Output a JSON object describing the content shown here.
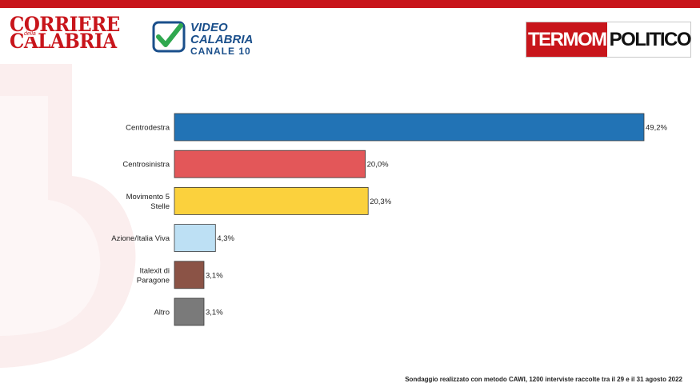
{
  "brand": {
    "cdc_line1": "CORRIERE",
    "cdc_della": "della",
    "cdc_line2": "CALABRIA",
    "vc_line1": "VIDEO",
    "vc_line2": "CALABRIA",
    "vc_line3": "CANALE 10",
    "tp_left": "TERMOMETRO",
    "tp_right": "POLITICO",
    "accent": "#c8151b"
  },
  "chart_data": {
    "type": "bar",
    "orientation": "horizontal",
    "categories": [
      [
        "Centrodestra"
      ],
      [
        "Centrosinistra"
      ],
      [
        "Movimento 5",
        "Stelle"
      ],
      [
        "Azione/Italia Viva"
      ],
      [
        "Italexit di",
        "Paragone"
      ],
      [
        "Altro"
      ]
    ],
    "values": [
      49.2,
      20.0,
      20.3,
      4.3,
      3.1,
      3.1
    ],
    "value_labels": [
      "49,2%",
      "20,0%",
      "20,3%",
      "4,3%",
      "3,1%",
      "3,1%"
    ],
    "colors": [
      "#2273b5",
      "#e35759",
      "#fbd13d",
      "#bde0f4",
      "#8b5346",
      "#7a7a7a"
    ],
    "xlim": [
      0,
      50
    ],
    "grid": false,
    "legend": "none"
  },
  "footer": {
    "note": "Sondaggio realizzato con metodo CAWI, 1200 interviste raccolte tra il 29 e il 31 agosto 2022"
  }
}
